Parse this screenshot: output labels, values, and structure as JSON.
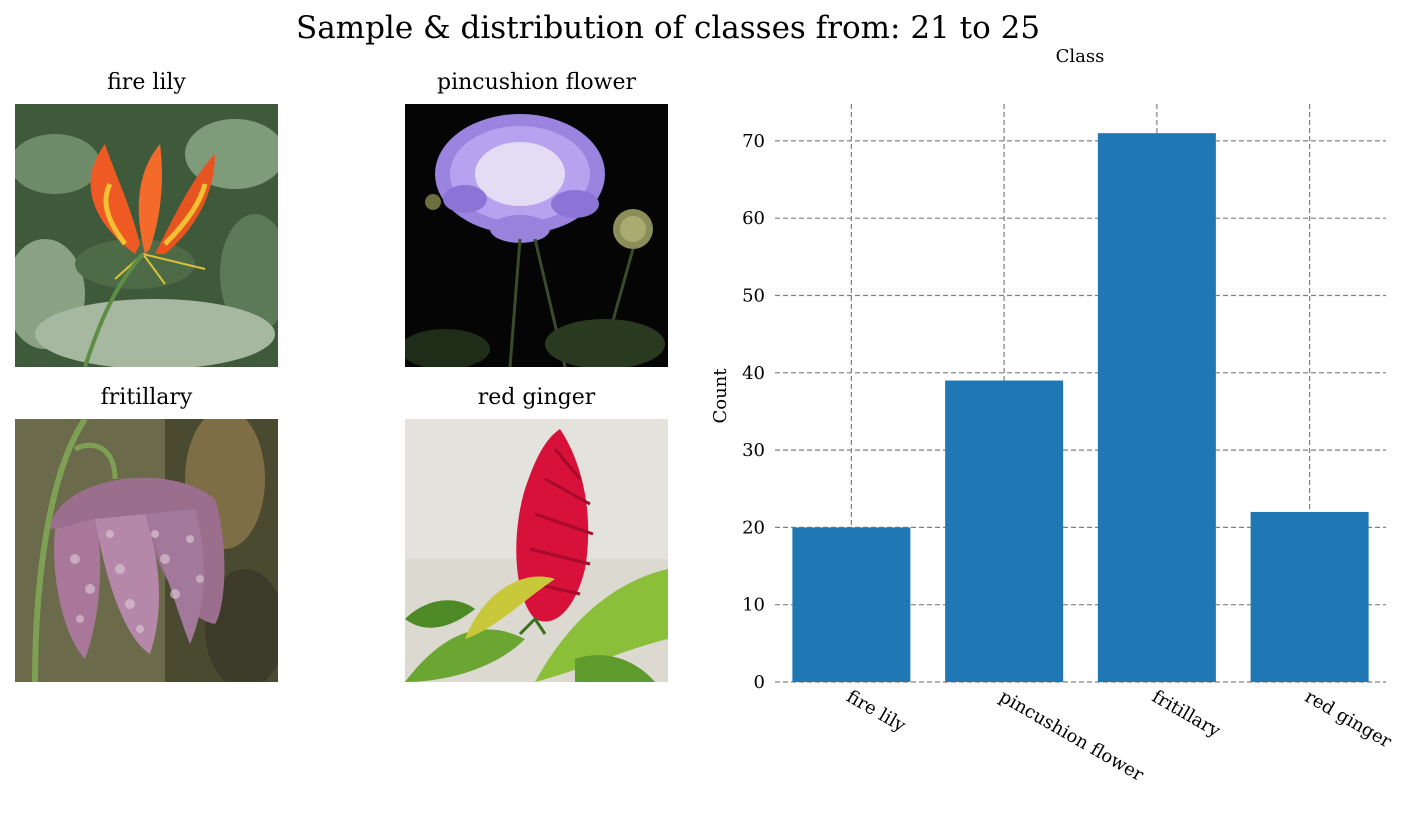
{
  "figure": {
    "title": "Sample & distribution of classes from: 21 to 25"
  },
  "samples": [
    {
      "label": "fire lily",
      "image": "fire-lily-photo"
    },
    {
      "label": "pincushion flower",
      "image": "pincushion-flower-photo"
    },
    {
      "label": "fritillary",
      "image": "fritillary-photo"
    },
    {
      "label": "red ginger",
      "image": "red-ginger-photo"
    }
  ],
  "chart_data": {
    "type": "bar",
    "title": "Class",
    "xlabel": "",
    "ylabel": "Count",
    "categories": [
      "fire lily",
      "pincushion flower",
      "fritillary",
      "red ginger"
    ],
    "values": [
      20,
      39,
      71,
      22
    ],
    "ylim": [
      0,
      75
    ],
    "yticks": [
      0,
      10,
      20,
      30,
      40,
      50,
      60,
      70
    ],
    "grid": true,
    "bar_color": "#1f77b4",
    "grid_color": "#808080"
  }
}
